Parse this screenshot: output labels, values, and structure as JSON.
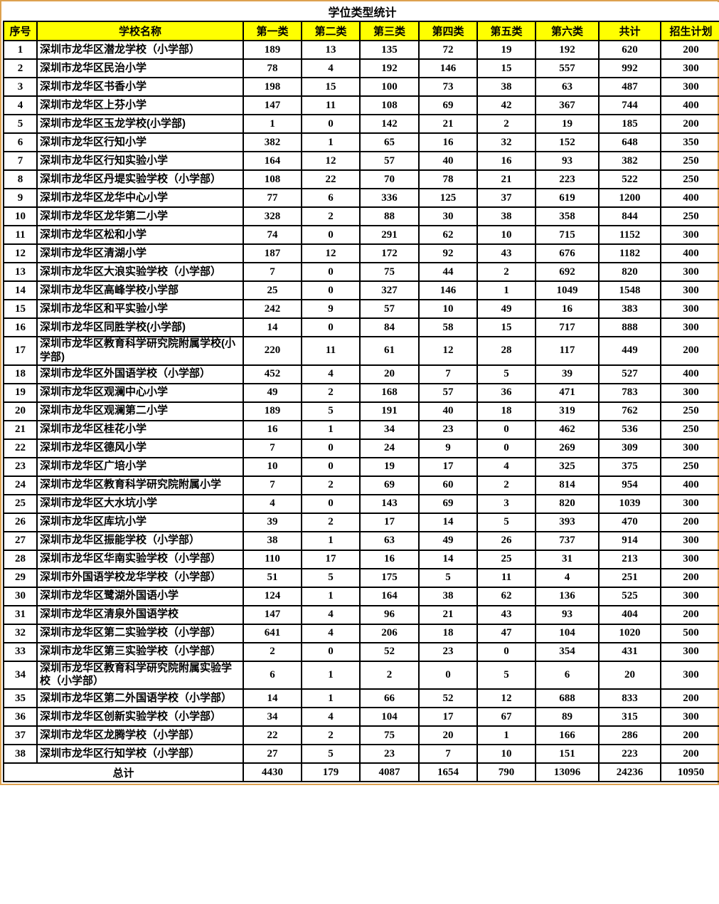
{
  "title": "学位类型统计",
  "colors": {
    "header_bg": "#FFFF00",
    "frame_border": "#DDA14F",
    "grid": "#000000",
    "text": "#000000"
  },
  "table": {
    "columns": [
      "序号",
      "学校名称",
      "第一类",
      "第二类",
      "第三类",
      "第四类",
      "第五类",
      "第六类",
      "共计",
      "招生计划"
    ],
    "rows": [
      {
        "no": "1",
        "school": "深圳市龙华区潜龙学校（小学部）",
        "values": [
          189,
          13,
          135,
          72,
          19,
          192,
          620,
          200
        ]
      },
      {
        "no": "2",
        "school": "深圳市龙华区民治小学",
        "values": [
          78,
          4,
          192,
          146,
          15,
          557,
          992,
          300
        ]
      },
      {
        "no": "3",
        "school": "深圳市龙华区书香小学",
        "values": [
          198,
          15,
          100,
          73,
          38,
          63,
          487,
          300
        ]
      },
      {
        "no": "4",
        "school": "深圳市龙华区上芬小学",
        "values": [
          147,
          11,
          108,
          69,
          42,
          367,
          744,
          400
        ]
      },
      {
        "no": "5",
        "school": "深圳市龙华区玉龙学校(小学部)",
        "values": [
          1,
          0,
          142,
          21,
          2,
          19,
          185,
          200
        ]
      },
      {
        "no": "6",
        "school": "深圳市龙华区行知小学",
        "values": [
          382,
          1,
          65,
          16,
          32,
          152,
          648,
          350
        ]
      },
      {
        "no": "7",
        "school": "深圳市龙华区行知实验小学",
        "values": [
          164,
          12,
          57,
          40,
          16,
          93,
          382,
          250
        ]
      },
      {
        "no": "8",
        "school": "深圳市龙华区丹堤实验学校（小学部）",
        "values": [
          108,
          22,
          70,
          78,
          21,
          223,
          522,
          250
        ]
      },
      {
        "no": "9",
        "school": "深圳市龙华区龙华中心小学",
        "values": [
          77,
          6,
          336,
          125,
          37,
          619,
          1200,
          400
        ]
      },
      {
        "no": "10",
        "school": "深圳市龙华区龙华第二小学",
        "values": [
          328,
          2,
          88,
          30,
          38,
          358,
          844,
          250
        ]
      },
      {
        "no": "11",
        "school": "深圳市龙华区松和小学",
        "values": [
          74,
          0,
          291,
          62,
          10,
          715,
          1152,
          300
        ]
      },
      {
        "no": "12",
        "school": "深圳市龙华区清湖小学",
        "values": [
          187,
          12,
          172,
          92,
          43,
          676,
          1182,
          400
        ]
      },
      {
        "no": "13",
        "school": "深圳市龙华区大浪实验学校（小学部）",
        "values": [
          7,
          0,
          75,
          44,
          2,
          692,
          820,
          300
        ]
      },
      {
        "no": "14",
        "school": "深圳市龙华区高峰学校小学部",
        "values": [
          25,
          0,
          327,
          146,
          1,
          1049,
          1548,
          300
        ]
      },
      {
        "no": "15",
        "school": "深圳市龙华区和平实验小学",
        "values": [
          242,
          9,
          57,
          10,
          49,
          16,
          383,
          300
        ]
      },
      {
        "no": "16",
        "school": "深圳市龙华区同胜学校(小学部)",
        "values": [
          14,
          0,
          84,
          58,
          15,
          717,
          888,
          300
        ]
      },
      {
        "no": "17",
        "school": "深圳市龙华区教育科学研究院附属学校(小学部)",
        "values": [
          220,
          11,
          61,
          12,
          28,
          117,
          449,
          200
        ]
      },
      {
        "no": "18",
        "school": "深圳市龙华区外国语学校（小学部）",
        "values": [
          452,
          4,
          20,
          7,
          5,
          39,
          527,
          400
        ]
      },
      {
        "no": "19",
        "school": "深圳市龙华区观澜中心小学",
        "values": [
          49,
          2,
          168,
          57,
          36,
          471,
          783,
          300
        ]
      },
      {
        "no": "20",
        "school": "深圳市龙华区观澜第二小学",
        "values": [
          189,
          5,
          191,
          40,
          18,
          319,
          762,
          250
        ]
      },
      {
        "no": "21",
        "school": "深圳市龙华区桂花小学",
        "values": [
          16,
          1,
          34,
          23,
          0,
          462,
          536,
          250
        ]
      },
      {
        "no": "22",
        "school": "深圳市龙华区德风小学",
        "values": [
          7,
          0,
          24,
          9,
          0,
          269,
          309,
          300
        ]
      },
      {
        "no": "23",
        "school": "深圳市龙华区广培小学",
        "values": [
          10,
          0,
          19,
          17,
          4,
          325,
          375,
          250
        ]
      },
      {
        "no": "24",
        "school": "深圳市龙华区教育科学研究院附属小学",
        "values": [
          7,
          2,
          69,
          60,
          2,
          814,
          954,
          400
        ]
      },
      {
        "no": "25",
        "school": "深圳市龙华区大水坑小学",
        "values": [
          4,
          0,
          143,
          69,
          3,
          820,
          1039,
          300
        ]
      },
      {
        "no": "26",
        "school": "深圳市龙华区库坑小学",
        "values": [
          39,
          2,
          17,
          14,
          5,
          393,
          470,
          200
        ]
      },
      {
        "no": "27",
        "school": "深圳市龙华区振能学校（小学部）",
        "values": [
          38,
          1,
          63,
          49,
          26,
          737,
          914,
          300
        ]
      },
      {
        "no": "28",
        "school": "深圳市龙华区华南实验学校（小学部）",
        "values": [
          110,
          17,
          16,
          14,
          25,
          31,
          213,
          300
        ]
      },
      {
        "no": "29",
        "school": "深圳市外国语学校龙华学校（小学部）",
        "values": [
          51,
          5,
          175,
          5,
          11,
          4,
          251,
          200
        ]
      },
      {
        "no": "30",
        "school": "深圳市龙华区鹭湖外国语小学",
        "values": [
          124,
          1,
          164,
          38,
          62,
          136,
          525,
          300
        ]
      },
      {
        "no": "31",
        "school": "深圳市龙华区清泉外国语学校",
        "values": [
          147,
          4,
          96,
          21,
          43,
          93,
          404,
          200
        ]
      },
      {
        "no": "32",
        "school": "深圳市龙华区第二实验学校（小学部）",
        "values": [
          641,
          4,
          206,
          18,
          47,
          104,
          1020,
          500
        ]
      },
      {
        "no": "33",
        "school": "深圳市龙华区第三实验学校（小学部）",
        "values": [
          2,
          0,
          52,
          23,
          0,
          354,
          431,
          300
        ]
      },
      {
        "no": "34",
        "school": "深圳市龙华区教育科学研究院附属实验学校（小学部）",
        "values": [
          6,
          1,
          2,
          0,
          5,
          6,
          20,
          300
        ]
      },
      {
        "no": "35",
        "school": "深圳市龙华区第二外国语学校（小学部）",
        "values": [
          14,
          1,
          66,
          52,
          12,
          688,
          833,
          200
        ]
      },
      {
        "no": "36",
        "school": "深圳市龙华区创新实验学校（小学部）",
        "values": [
          34,
          4,
          104,
          17,
          67,
          89,
          315,
          300
        ]
      },
      {
        "no": "37",
        "school": "深圳市龙华区龙腾学校（小学部）",
        "values": [
          22,
          2,
          75,
          20,
          1,
          166,
          286,
          200
        ]
      },
      {
        "no": "38",
        "school": "深圳市龙华区行知学校（小学部）",
        "values": [
          27,
          5,
          23,
          7,
          10,
          151,
          223,
          200
        ]
      }
    ],
    "total": {
      "label": "总计",
      "values": [
        4430,
        179,
        4087,
        1654,
        790,
        13096,
        24236,
        10950
      ]
    }
  }
}
